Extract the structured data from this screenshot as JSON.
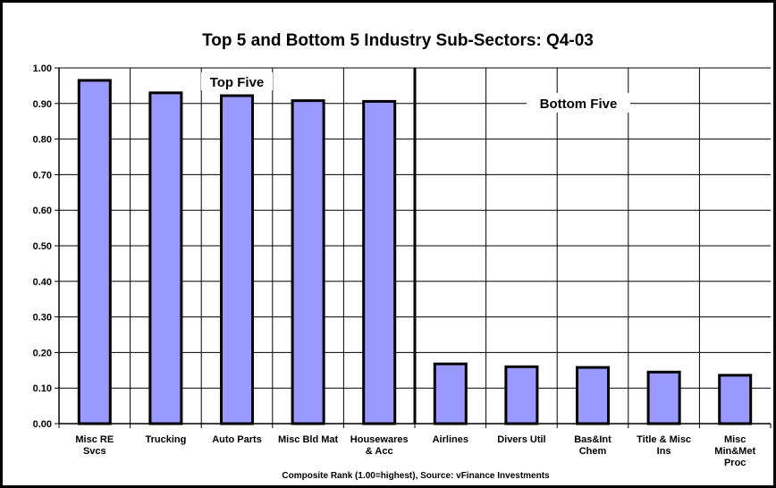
{
  "chart_data": {
    "type": "bar",
    "title": "Top 5 and Bottom 5 Industry Sub-Sectors: Q4-03",
    "xlabel": "Composite Rank (1.00=highest), Source: vFinance Investments",
    "ylabel": "",
    "ylim": [
      0,
      1.0
    ],
    "ytick_step": 0.1,
    "ytick_labels": [
      "0.00",
      "0.10",
      "0.20",
      "0.30",
      "0.40",
      "0.50",
      "0.60",
      "0.70",
      "0.80",
      "0.90",
      "1.00"
    ],
    "grid": true,
    "bar_color": "#9999ff",
    "categories": [
      [
        "Misc RE",
        "Svcs"
      ],
      [
        "Trucking"
      ],
      [
        "Auto Parts"
      ],
      [
        "Misc Bld Mat"
      ],
      [
        "Housewares",
        "& Acc"
      ],
      [
        "Airlines"
      ],
      [
        "Divers Util"
      ],
      [
        "Bas&Int",
        "Chem"
      ],
      [
        "Title & Misc",
        "Ins"
      ],
      [
        "Misc",
        "Min&Met",
        "Proc"
      ]
    ],
    "values": [
      0.965,
      0.93,
      0.922,
      0.908,
      0.906,
      0.168,
      0.16,
      0.158,
      0.145,
      0.136
    ],
    "annotations": [
      "Top Five",
      "Bottom Five"
    ]
  }
}
